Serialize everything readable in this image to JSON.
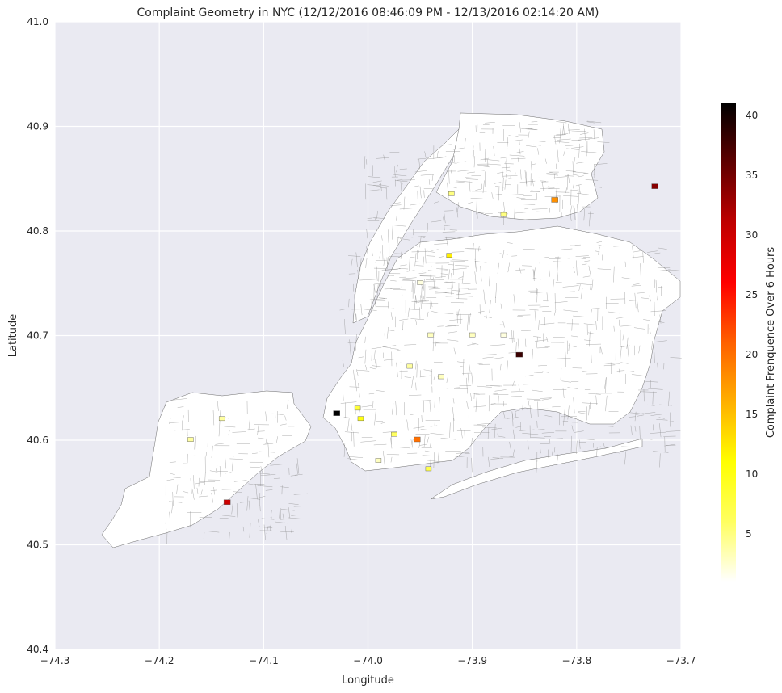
{
  "chart_data": {
    "type": "heatmap",
    "title": "Complaint Geometry in NYC (12/12/2016 08:46:09 PM - 12/13/2016 02:14:20 AM)",
    "xlabel": "Longitude",
    "ylabel": "Latitude",
    "xlim": [
      -74.3,
      -73.7
    ],
    "ylim": [
      40.4,
      41.0
    ],
    "xticks": [
      -74.3,
      -74.2,
      -74.1,
      -74.0,
      -73.9,
      -73.8,
      -73.7
    ],
    "xtick_labels": [
      "−74.3",
      "−74.2",
      "−74.1",
      "−74.0",
      "−73.9",
      "−73.8",
      "−73.7"
    ],
    "yticks": [
      40.4,
      40.5,
      40.6,
      40.7,
      40.8,
      40.9,
      41.0
    ],
    "ytick_labels": [
      "40.4",
      "40.5",
      "40.6",
      "40.7",
      "40.8",
      "40.9",
      "41.0"
    ],
    "grid": true,
    "colorbar": {
      "label": "Complaint Frenquence Over 6 Hours",
      "range": [
        1,
        41
      ],
      "ticks": [
        5,
        10,
        15,
        20,
        25,
        30,
        35,
        40
      ],
      "tick_labels": [
        "5",
        "10",
        "15",
        "20",
        "25",
        "30",
        "35",
        "40"
      ],
      "colormap": "hot_r",
      "colors": [
        "#ffffff",
        "#ffff60",
        "#ffff00",
        "#ffb000",
        "#ff6000",
        "#ff0000",
        "#c00000",
        "#600000",
        "#000000"
      ]
    },
    "highlighted_regions": [
      {
        "lon": -74.03,
        "lat": 40.625,
        "value": 41
      },
      {
        "lon": -73.855,
        "lat": 40.681,
        "value": 38
      },
      {
        "lon": -73.821,
        "lat": 40.829,
        "value": 18
      },
      {
        "lon": -73.953,
        "lat": 40.6,
        "value": 20
      },
      {
        "lon": -73.725,
        "lat": 40.842,
        "value": 34
      },
      {
        "lon": -74.135,
        "lat": 40.54,
        "value": 30
      },
      {
        "lon": -73.922,
        "lat": 40.776,
        "value": 12
      },
      {
        "lon": -74.007,
        "lat": 40.62,
        "value": 10
      },
      {
        "lon": -74.01,
        "lat": 40.63,
        "value": 8
      },
      {
        "lon": -73.942,
        "lat": 40.572,
        "value": 7
      },
      {
        "lon": -73.975,
        "lat": 40.605,
        "value": 6
      },
      {
        "lon": -73.92,
        "lat": 40.835,
        "value": 5
      },
      {
        "lon": -73.87,
        "lat": 40.815,
        "value": 5
      },
      {
        "lon": -74.17,
        "lat": 40.6,
        "value": 4
      },
      {
        "lon": -74.14,
        "lat": 40.62,
        "value": 4
      },
      {
        "lon": -73.96,
        "lat": 40.67,
        "value": 4
      },
      {
        "lon": -73.94,
        "lat": 40.7,
        "value": 3
      },
      {
        "lon": -73.9,
        "lat": 40.7,
        "value": 3
      },
      {
        "lon": -73.99,
        "lat": 40.58,
        "value": 3
      },
      {
        "lon": -73.93,
        "lat": 40.66,
        "value": 3
      },
      {
        "lon": -73.87,
        "lat": 40.7,
        "value": 2
      },
      {
        "lon": -73.95,
        "lat": 40.75,
        "value": 2
      }
    ]
  }
}
